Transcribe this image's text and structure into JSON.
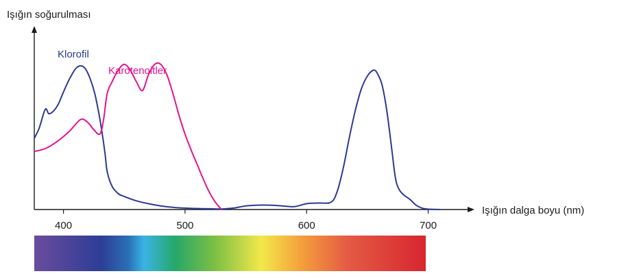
{
  "chart_data": {
    "type": "line",
    "title": "",
    "ylabel": "Işığın soğurulması",
    "xlabel": "Işığın dalga boyu (nm)",
    "xlim": [
      376,
      720
    ],
    "ylim": [
      0,
      1
    ],
    "xticks": [
      400,
      500,
      600,
      700
    ],
    "xtick_labels": [
      "400",
      "500",
      "600",
      "700"
    ],
    "grid": false,
    "spectrum_bar": true,
    "series": [
      {
        "name": "Klorofil",
        "color": "#2b3990",
        "x": [
          376,
          380,
          385,
          388,
          392,
          396,
          400,
          405,
          410,
          414,
          418,
          422,
          426,
          430,
          434,
          436,
          440,
          445,
          450,
          460,
          470,
          480,
          490,
          500,
          510,
          520,
          530,
          540,
          550,
          560,
          570,
          580,
          590,
          600,
          610,
          620,
          625,
          630,
          635,
          640,
          645,
          650,
          655,
          658,
          662,
          666,
          670,
          673,
          676,
          680,
          685,
          690,
          695,
          700,
          710
        ],
        "y": [
          0.49,
          0.56,
          0.69,
          0.66,
          0.68,
          0.73,
          0.81,
          0.9,
          0.97,
          0.99,
          0.97,
          0.9,
          0.79,
          0.62,
          0.4,
          0.26,
          0.16,
          0.11,
          0.09,
          0.06,
          0.04,
          0.025,
          0.015,
          0.01,
          0.007,
          0.005,
          0.004,
          0.01,
          0.025,
          0.03,
          0.03,
          0.025,
          0.02,
          0.04,
          0.045,
          0.05,
          0.12,
          0.28,
          0.49,
          0.68,
          0.83,
          0.92,
          0.96,
          0.94,
          0.86,
          0.68,
          0.42,
          0.22,
          0.14,
          0.1,
          0.07,
          0.03,
          0.01,
          0.003,
          0.0
        ]
      },
      {
        "name": "Karotenoitler",
        "color": "#e5128b",
        "x": [
          376,
          385,
          395,
          405,
          414,
          420,
          425,
          430,
          433,
          436,
          440,
          445,
          450,
          455,
          460,
          465,
          470,
          475,
          480,
          485,
          490,
          495,
          500,
          505,
          510,
          515,
          520,
          525,
          530
        ],
        "y": [
          0.4,
          0.42,
          0.47,
          0.54,
          0.62,
          0.6,
          0.55,
          0.52,
          0.62,
          0.8,
          0.88,
          0.96,
          1.0,
          0.96,
          0.88,
          0.82,
          0.93,
          1.0,
          1.0,
          0.93,
          0.8,
          0.65,
          0.52,
          0.41,
          0.31,
          0.21,
          0.12,
          0.05,
          0.0
        ]
      }
    ],
    "spectrum_colors": [
      "#6a4c9c",
      "#2e3d97",
      "#2a6fb6",
      "#3ab3e5",
      "#26a86a",
      "#7bbf44",
      "#f2e84a",
      "#f4a13c",
      "#e45b44",
      "#d7262f"
    ]
  }
}
